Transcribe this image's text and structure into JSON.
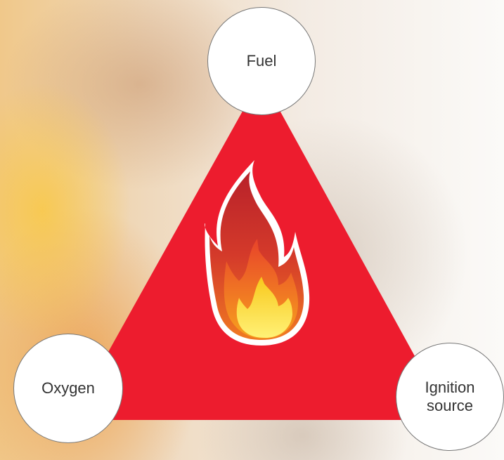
{
  "nodes": [
    {
      "label": "Fuel"
    },
    {
      "label": "Oxygen"
    },
    {
      "label": "Ignition source"
    }
  ]
}
